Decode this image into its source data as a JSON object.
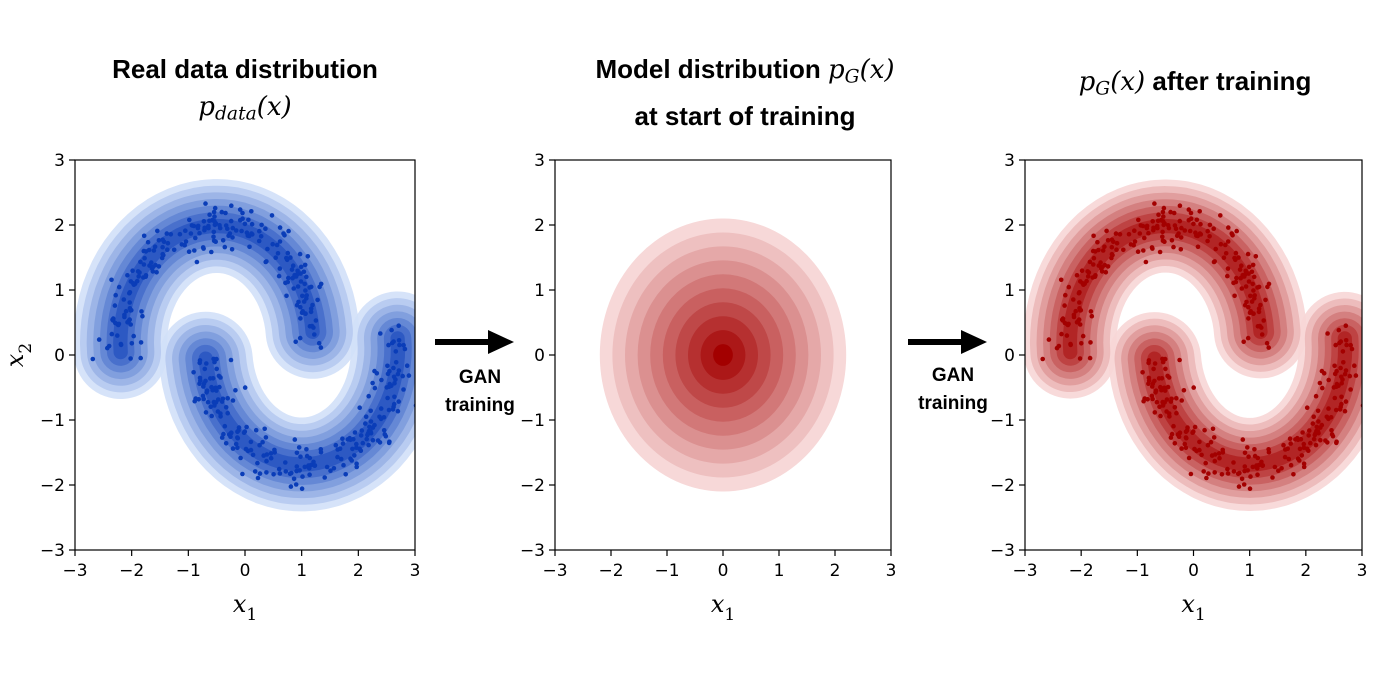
{
  "titles": {
    "left_line1": "Real data distribution",
    "left_line2_base": "p",
    "left_line2_sub": "data",
    "left_line2_arg": "(x)",
    "middle_line1_text": "Model distribution ",
    "middle_line1_base": "p",
    "middle_line1_sub": "G",
    "middle_line1_arg": "(x)",
    "middle_line2": "at start of training",
    "right_base": "p",
    "right_sub": "G",
    "right_arg": "(x)",
    "right_text": " after training"
  },
  "arrows": [
    {
      "line1": "GAN",
      "line2": "training"
    },
    {
      "line1": "GAN",
      "line2": "training"
    }
  ],
  "colors": {
    "blue_dark": "#0a3db8",
    "blue_light": "#dde9fb",
    "red_dark": "#a30000",
    "red_light": "#fbe1e1",
    "arrow": "#000000"
  },
  "chart_data": [
    {
      "type": "scatter",
      "subtype": "two-moons density (kde contours + samples)",
      "colormap": "Blues",
      "xlabel": "x1",
      "ylabel": "x2",
      "xlim": [
        -3,
        3
      ],
      "ylim": [
        -3,
        3
      ],
      "xticks": [
        -3,
        -2,
        -1,
        0,
        1,
        2,
        3
      ],
      "yticks": [
        -3,
        -2,
        -1,
        0,
        1,
        2,
        3
      ],
      "moon_upper": {
        "center": [
          -0.5,
          0.2
        ],
        "radius": 1.7,
        "angle_range_deg": [
          5,
          185
        ]
      },
      "moon_lower": {
        "center": [
          1.0,
          0.1
        ],
        "radius": 1.7,
        "angle_range_deg": [
          185,
          365
        ]
      },
      "noise_std": 0.18
    },
    {
      "type": "heatmap",
      "subtype": "2D gaussian contours",
      "colormap": "Reds",
      "xlabel": "x1",
      "xlim": [
        -3,
        3
      ],
      "ylim": [
        -3,
        3
      ],
      "xticks": [
        -3,
        -2,
        -1,
        0,
        1,
        2,
        3
      ],
      "yticks": [
        -3,
        -2,
        -1,
        0,
        1,
        2,
        3
      ],
      "mean": [
        0,
        0
      ],
      "std": [
        1.0,
        1.0
      ],
      "levels": 10,
      "outer_extent": [
        2.2,
        2.1
      ]
    },
    {
      "type": "scatter",
      "subtype": "two-moons density (kde contours + samples)",
      "colormap": "Reds",
      "xlabel": "x1",
      "xlim": [
        -3,
        3
      ],
      "ylim": [
        -3,
        3
      ],
      "xticks": [
        -3,
        -2,
        -1,
        0,
        1,
        2,
        3
      ],
      "yticks": [
        -3,
        -2,
        -1,
        0,
        1,
        2,
        3
      ],
      "moon_upper": {
        "center": [
          -0.5,
          0.2
        ],
        "radius": 1.7,
        "angle_range_deg": [
          5,
          185
        ]
      },
      "moon_lower": {
        "center": [
          1.0,
          0.1
        ],
        "radius": 1.7,
        "angle_range_deg": [
          185,
          365
        ]
      },
      "noise_std": 0.18
    }
  ]
}
